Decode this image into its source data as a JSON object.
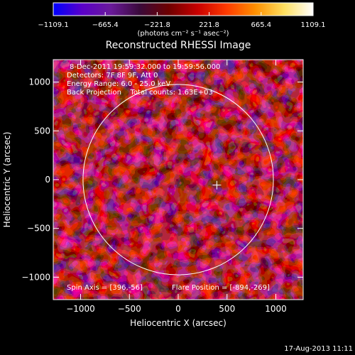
{
  "colorbar": {
    "ticks": [
      "-1109.1",
      "-665.4",
      "-221.8",
      "221.8",
      "665.4",
      "1109.1"
    ],
    "range": [
      -1109.1,
      1109.1
    ],
    "colors": [
      "#0000ff",
      "#5a00c8",
      "#6a1a9a",
      "#3a0a3a",
      "#6e0000",
      "#c80000",
      "#ff3a00",
      "#ff9000",
      "#ffe060",
      "#ffffff"
    ],
    "units": "(photons cm⁻² s⁻¹ asec⁻²)"
  },
  "chart_data": {
    "type": "heatmap",
    "title": "Reconstructed RHESSI Image",
    "xlabel": "Heliocentric X (arcsec)",
    "ylabel": "Heliocentric Y (arcsec)",
    "xlim": [
      -1280,
      1280
    ],
    "ylim": [
      -1230,
      1230
    ],
    "x_ticks": [
      -1000,
      -500,
      0,
      500,
      1000
    ],
    "y_ticks": [
      -1000,
      -500,
      0,
      500,
      1000
    ],
    "x_tick_labels": [
      "−1000",
      "−500",
      "0",
      "500",
      "1000"
    ],
    "y_tick_labels": [
      "−1000",
      "−500",
      "0",
      "500",
      "1000"
    ],
    "solar_limb_radius": 975,
    "flare_marker": [
      396,
      -56
    ],
    "bright_source": [
      -890,
      -265
    ],
    "annotations": [
      "8-Dec-2011 19:59:32.000 to 19:59:56.000",
      "Detectors: 7F 8F 9F, Att 0",
      "Energy Range: 6.0 - 25.0 keV",
      "Back Projection    Total counts: 1.63E+03"
    ],
    "spin_axis": "Spin Axis = [396,-56]",
    "flare_position": "Flare Position = [-894,-269]"
  },
  "footer_date": "17-Aug-2013 11:11"
}
